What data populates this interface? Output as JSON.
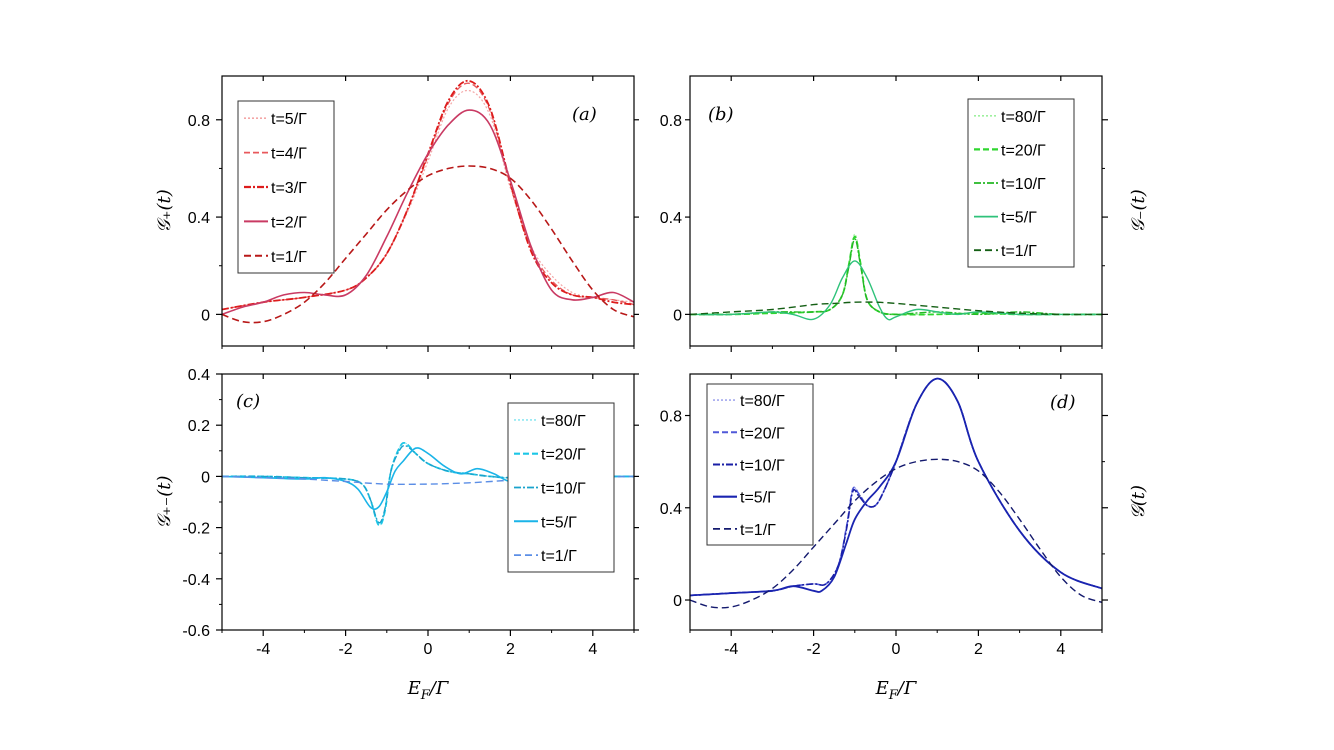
{
  "chart_data": [
    {
      "id": "a",
      "type": "line",
      "panel_label": "(a)",
      "ylabel": "𝒢₊(t)",
      "xlabel": "",
      "xlim": [
        -5,
        5
      ],
      "ylim": [
        -0.13,
        0.98
      ],
      "yticks": [
        0,
        0.4,
        0.8
      ],
      "ytick_labels": [
        "0",
        "0.4",
        "0.8"
      ],
      "xticks": [
        -4,
        -2,
        0,
        2,
        4
      ],
      "xtick_labels": [],
      "legend_position": "top-left",
      "series": [
        {
          "name": "t=5/Γ",
          "color": "#f4a6a6",
          "dash": "2,2",
          "width": 1.2,
          "x": [
            -5,
            -4,
            -3,
            -2,
            -1.5,
            -1,
            -0.5,
            0,
            0.5,
            1,
            1.5,
            2,
            2.5,
            3,
            3.5,
            4,
            4.5,
            5
          ],
          "y": [
            0.02,
            0.05,
            0.07,
            0.1,
            0.15,
            0.25,
            0.42,
            0.63,
            0.85,
            0.92,
            0.82,
            0.52,
            0.28,
            0.16,
            0.09,
            0.07,
            0.06,
            0.05
          ]
        },
        {
          "name": "t=4/Γ",
          "color": "#e8585c",
          "dash": "6,3",
          "width": 1.3,
          "x": [
            -5,
            -4,
            -3,
            -2,
            -1.5,
            -1,
            -0.5,
            0,
            0.5,
            1,
            1.5,
            2,
            2.5,
            3,
            3.5,
            4,
            4.5,
            5
          ],
          "y": [
            0.02,
            0.05,
            0.07,
            0.1,
            0.15,
            0.25,
            0.43,
            0.65,
            0.87,
            0.95,
            0.84,
            0.53,
            0.27,
            0.14,
            0.08,
            0.07,
            0.06,
            0.04
          ]
        },
        {
          "name": "t=3/Γ",
          "color": "#dd1c1c",
          "dash": "7,2,2,2",
          "width": 1.8,
          "x": [
            -5,
            -4,
            -3,
            -2,
            -1.5,
            -1,
            -0.5,
            0,
            0.5,
            1,
            1.5,
            2,
            2.5,
            3,
            3.5,
            4,
            4.5,
            5
          ],
          "y": [
            0.02,
            0.05,
            0.07,
            0.1,
            0.15,
            0.25,
            0.43,
            0.66,
            0.88,
            0.96,
            0.85,
            0.54,
            0.26,
            0.13,
            0.08,
            0.07,
            0.05,
            0.04
          ]
        },
        {
          "name": "t=2/Γ",
          "color": "#c93a63",
          "dash": "",
          "width": 1.6,
          "x": [
            -5,
            -4.5,
            -4,
            -3.5,
            -3,
            -2.5,
            -2,
            -1.5,
            -1,
            -0.5,
            0,
            0.5,
            1,
            1.5,
            2,
            2.5,
            3,
            3.5,
            4,
            4.5,
            5
          ],
          "y": [
            0.0,
            0.03,
            0.05,
            0.08,
            0.09,
            0.08,
            0.08,
            0.16,
            0.32,
            0.5,
            0.66,
            0.78,
            0.84,
            0.78,
            0.55,
            0.28,
            0.1,
            0.06,
            0.07,
            0.09,
            0.05
          ]
        },
        {
          "name": "t=1/Γ",
          "color": "#b81818",
          "dash": "7,4",
          "width": 1.6,
          "x": [
            -5,
            -4.5,
            -4,
            -3.5,
            -3,
            -2.5,
            -2,
            -1.5,
            -1,
            -0.5,
            0,
            0.5,
            1,
            1.5,
            2,
            2.5,
            3,
            3.5,
            4,
            4.5,
            5
          ],
          "y": [
            0.0,
            -0.03,
            -0.03,
            0.0,
            0.05,
            0.13,
            0.23,
            0.33,
            0.43,
            0.51,
            0.57,
            0.6,
            0.61,
            0.6,
            0.56,
            0.47,
            0.35,
            0.22,
            0.1,
            0.02,
            -0.01
          ]
        }
      ]
    },
    {
      "id": "b",
      "type": "line",
      "panel_label": "(b)",
      "ylabel": "𝒢₋(t)",
      "ylabel_side": "right",
      "xlabel": "",
      "xlim": [
        -5,
        5
      ],
      "ylim": [
        -0.13,
        0.98
      ],
      "yticks": [
        0,
        0.4,
        0.8
      ],
      "ytick_labels": [
        "0",
        "0.4",
        "0.8"
      ],
      "xticks": [
        -4,
        -2,
        0,
        2,
        4
      ],
      "xtick_labels": [],
      "legend_position": "top-right",
      "series": [
        {
          "name": "t=80/Γ",
          "color": "#9ef09e",
          "dash": "2,2",
          "width": 1.2,
          "x": [
            -5,
            -4,
            -3,
            -2,
            -1.6,
            -1.3,
            -1.15,
            -1,
            -0.85,
            -0.7,
            -0.4,
            0,
            1,
            2,
            3,
            4,
            5
          ],
          "y": [
            0,
            0,
            0.005,
            0.01,
            0.02,
            0.08,
            0.2,
            0.33,
            0.2,
            0.06,
            0.01,
            0,
            0,
            0,
            0,
            0,
            0
          ]
        },
        {
          "name": "t=20/Γ",
          "color": "#2fd62f",
          "dash": "6,3",
          "width": 1.8,
          "x": [
            -5,
            -4,
            -3,
            -2,
            -1.6,
            -1.3,
            -1.15,
            -1,
            -0.85,
            -0.7,
            -0.4,
            0,
            1,
            2,
            3,
            4,
            5
          ],
          "y": [
            0,
            0,
            0.005,
            0.01,
            0.02,
            0.08,
            0.2,
            0.32,
            0.2,
            0.06,
            0.01,
            0,
            0,
            0.005,
            0,
            0,
            0
          ]
        },
        {
          "name": "t=10/Γ",
          "color": "#24b824",
          "dash": "7,2,2,2",
          "width": 1.4,
          "x": [
            -5,
            -4,
            -3,
            -2,
            -1.6,
            -1.3,
            -1.15,
            -1,
            -0.85,
            -0.7,
            -0.4,
            0,
            1,
            2,
            3,
            4,
            5
          ],
          "y": [
            0,
            0,
            0.01,
            0.01,
            0.02,
            0.08,
            0.19,
            0.31,
            0.19,
            0.06,
            0.01,
            0,
            0.01,
            0,
            0.01,
            0,
            0
          ]
        },
        {
          "name": "t=5/Γ",
          "color": "#2ec27a",
          "dash": "",
          "width": 1.4,
          "x": [
            -5,
            -4,
            -3,
            -2.5,
            -2,
            -1.6,
            -1.3,
            -1,
            -0.7,
            -0.4,
            -0.2,
            0,
            0.5,
            1,
            1.5,
            2,
            3,
            4,
            5
          ],
          "y": [
            0,
            0,
            0.01,
            0.0,
            -0.02,
            0.04,
            0.15,
            0.22,
            0.15,
            0.03,
            -0.02,
            -0.01,
            0.02,
            0.01,
            0.0,
            0.01,
            0,
            0,
            0
          ]
        },
        {
          "name": "t=1/Γ",
          "color": "#145f14",
          "dash": "7,4",
          "width": 1.4,
          "x": [
            -5,
            -4,
            -3,
            -2,
            -1.5,
            -1,
            -0.5,
            0,
            1,
            2,
            3,
            4,
            5
          ],
          "y": [
            0,
            0.01,
            0.02,
            0.04,
            0.045,
            0.05,
            0.05,
            0.045,
            0.03,
            0.015,
            0.005,
            0,
            0
          ]
        }
      ]
    },
    {
      "id": "c",
      "type": "line",
      "panel_label": "(c)",
      "ylabel": "𝒢₊₋(t)",
      "xlabel": "E_F/Γ",
      "xlim": [
        -5,
        5
      ],
      "ylim": [
        -0.6,
        0.4
      ],
      "yticks": [
        -0.6,
        -0.4,
        -0.2,
        0,
        0.2,
        0.4
      ],
      "ytick_labels": [
        "-0.6",
        "-0.4",
        "-0.2",
        "0",
        "0.2",
        "0.4"
      ],
      "xticks": [
        -4,
        -2,
        0,
        2,
        4
      ],
      "xtick_labels": [
        "-4",
        "-2",
        "0",
        "2",
        "4"
      ],
      "legend_position": "right",
      "series": [
        {
          "name": "t=80/Γ",
          "color": "#8ee8f2",
          "dash": "2,2",
          "width": 1.2,
          "x": [
            -5,
            -4,
            -3,
            -2,
            -1.6,
            -1.4,
            -1.2,
            -1.05,
            -0.9,
            -0.7,
            -0.55,
            -0.3,
            0,
            0.5,
            1,
            1.5,
            2,
            3,
            4,
            5
          ],
          "y": [
            0,
            0,
            -0.005,
            -0.01,
            -0.03,
            -0.09,
            -0.19,
            -0.14,
            0.02,
            0.11,
            0.13,
            0.09,
            0.05,
            0.02,
            0.01,
            0.0,
            -0.005,
            0,
            0,
            0
          ]
        },
        {
          "name": "t=20/Γ",
          "color": "#1cc6e6",
          "dash": "6,3",
          "width": 1.8,
          "x": [
            -5,
            -4,
            -3,
            -2,
            -1.6,
            -1.4,
            -1.2,
            -1.05,
            -0.9,
            -0.7,
            -0.55,
            -0.3,
            0,
            0.5,
            1,
            1.5,
            2,
            3,
            4,
            5
          ],
          "y": [
            0,
            0,
            -0.005,
            -0.01,
            -0.03,
            -0.09,
            -0.19,
            -0.14,
            0.02,
            0.11,
            0.13,
            0.09,
            0.05,
            0.02,
            0.01,
            0.0,
            -0.005,
            0,
            0,
            0
          ]
        },
        {
          "name": "t=10/Γ",
          "color": "#1aa3cc",
          "dash": "7,2,2,2",
          "width": 1.4,
          "x": [
            -5,
            -4,
            -3,
            -2,
            -1.6,
            -1.4,
            -1.2,
            -1.05,
            -0.9,
            -0.7,
            -0.55,
            -0.3,
            0,
            0.5,
            1,
            1.5,
            2,
            3,
            4,
            5
          ],
          "y": [
            0,
            0,
            -0.005,
            -0.01,
            -0.03,
            -0.09,
            -0.18,
            -0.13,
            0.02,
            0.1,
            0.12,
            0.09,
            0.05,
            0.02,
            0.01,
            0.0,
            -0.005,
            0,
            0,
            0
          ]
        },
        {
          "name": "t=5/Γ",
          "color": "#1ab4e8",
          "dash": "",
          "width": 1.6,
          "x": [
            -5,
            -4,
            -3,
            -2.5,
            -2,
            -1.7,
            -1.4,
            -1.2,
            -1,
            -0.8,
            -0.6,
            -0.3,
            0,
            0.4,
            0.8,
            1.2,
            1.6,
            2,
            2.5,
            3,
            4,
            5
          ],
          "y": [
            0,
            -0.005,
            -0.01,
            -0.005,
            -0.02,
            -0.05,
            -0.12,
            -0.12,
            -0.06,
            0.02,
            0.06,
            0.11,
            0.09,
            0.04,
            0.01,
            0.03,
            0.01,
            -0.02,
            -0.01,
            0,
            0,
            0
          ]
        },
        {
          "name": "t=1/Γ",
          "color": "#5b8ee6",
          "dash": "7,4",
          "width": 1.4,
          "x": [
            -5,
            -4,
            -3,
            -2,
            -1,
            0,
            1,
            2,
            3,
            4,
            5
          ],
          "y": [
            0,
            -0.005,
            -0.01,
            -0.02,
            -0.03,
            -0.03,
            -0.025,
            -0.015,
            -0.008,
            -0.003,
            0
          ]
        }
      ]
    },
    {
      "id": "d",
      "type": "line",
      "panel_label": "(d)",
      "ylabel": "𝒢(t)",
      "ylabel_side": "right",
      "xlabel": "E_F/Γ",
      "xlim": [
        -5,
        5
      ],
      "ylim": [
        -0.13,
        0.98
      ],
      "yticks": [
        0,
        0.4,
        0.8
      ],
      "ytick_labels": [
        "0",
        "0.4",
        "0.8"
      ],
      "xticks": [
        -4,
        -2,
        0,
        2,
        4
      ],
      "xtick_labels": [
        "-4",
        "-2",
        "0",
        "2",
        "4"
      ],
      "legend_position": "top-left",
      "series": [
        {
          "name": "t=80/Γ",
          "color": "#a3a8ee",
          "dash": "2,2",
          "width": 1.2,
          "x": [
            -5,
            -4,
            -3,
            -2.5,
            -2,
            -1.7,
            -1.4,
            -1.2,
            -1.05,
            -0.9,
            -0.7,
            -0.5,
            -0.3,
            0,
            0.5,
            1,
            1.5,
            2,
            3,
            4,
            5
          ],
          "y": [
            0.02,
            0.03,
            0.04,
            0.06,
            0.07,
            0.07,
            0.15,
            0.32,
            0.48,
            0.46,
            0.41,
            0.41,
            0.47,
            0.6,
            0.85,
            0.96,
            0.86,
            0.6,
            0.3,
            0.12,
            0.05
          ]
        },
        {
          "name": "t=20/Γ",
          "color": "#5059d8",
          "dash": "6,3",
          "width": 1.6,
          "x": [
            -5,
            -4,
            -3,
            -2.5,
            -2,
            -1.7,
            -1.4,
            -1.2,
            -1.05,
            -0.9,
            -0.7,
            -0.5,
            -0.3,
            0,
            0.5,
            1,
            1.5,
            2,
            3,
            4,
            5
          ],
          "y": [
            0.02,
            0.03,
            0.04,
            0.06,
            0.07,
            0.07,
            0.15,
            0.32,
            0.48,
            0.46,
            0.41,
            0.41,
            0.47,
            0.6,
            0.85,
            0.96,
            0.86,
            0.6,
            0.3,
            0.12,
            0.05
          ]
        },
        {
          "name": "t=10/Γ",
          "color": "#1a1fa6",
          "dash": "7,2,2,2",
          "width": 1.6,
          "x": [
            -5,
            -4,
            -3,
            -2.5,
            -2,
            -1.7,
            -1.4,
            -1.2,
            -1.05,
            -0.9,
            -0.7,
            -0.5,
            -0.3,
            0,
            0.5,
            1,
            1.5,
            2,
            3,
            4,
            5
          ],
          "y": [
            0.02,
            0.03,
            0.04,
            0.06,
            0.07,
            0.07,
            0.15,
            0.31,
            0.47,
            0.45,
            0.41,
            0.41,
            0.47,
            0.6,
            0.85,
            0.96,
            0.86,
            0.6,
            0.3,
            0.12,
            0.05
          ]
        },
        {
          "name": "t=5/Γ",
          "color": "#1a24b0",
          "dash": "",
          "width": 1.8,
          "x": [
            -5,
            -4,
            -3,
            -2.5,
            -2,
            -1.8,
            -1.5,
            -1.2,
            -1,
            -0.7,
            -0.4,
            0,
            0.5,
            1,
            1.5,
            2,
            3,
            4,
            5
          ],
          "y": [
            0.02,
            0.03,
            0.04,
            0.06,
            0.04,
            0.04,
            0.1,
            0.25,
            0.35,
            0.43,
            0.49,
            0.6,
            0.85,
            0.96,
            0.86,
            0.6,
            0.3,
            0.12,
            0.05
          ]
        },
        {
          "name": "t=1/Γ",
          "color": "#141a6e",
          "dash": "7,4",
          "width": 1.4,
          "x": [
            -5,
            -4.5,
            -4,
            -3.5,
            -3,
            -2.5,
            -2,
            -1.5,
            -1,
            -0.5,
            0,
            0.5,
            1,
            1.5,
            2,
            2.5,
            3,
            3.5,
            4,
            4.5,
            5
          ],
          "y": [
            0.0,
            -0.03,
            -0.03,
            0.0,
            0.05,
            0.13,
            0.23,
            0.33,
            0.43,
            0.51,
            0.57,
            0.6,
            0.61,
            0.6,
            0.56,
            0.47,
            0.35,
            0.22,
            0.1,
            0.02,
            -0.01
          ]
        }
      ]
    }
  ]
}
